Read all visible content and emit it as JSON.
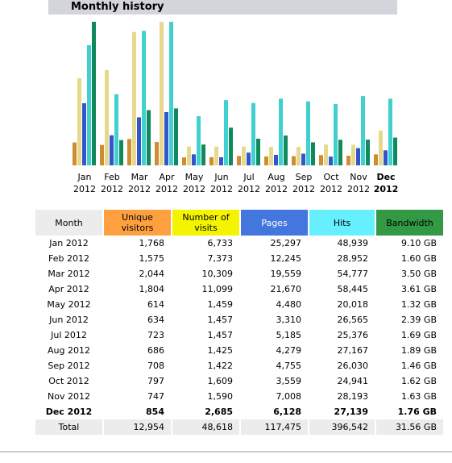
{
  "title": "Monthly history",
  "chart_data": {
    "type": "bar",
    "categories": [
      "Jan 2012",
      "Feb 2012",
      "Mar 2012",
      "Apr 2012",
      "May 2012",
      "Jun 2012",
      "Jul 2012",
      "Aug 2012",
      "Sep 2012",
      "Oct 2012",
      "Nov 2012",
      "Dec 2012"
    ],
    "highlight": "Dec 2012",
    "series": [
      {
        "name": "Unique visitors",
        "color": "#d08c30",
        "header_color": "#ffa040",
        "values": [
          1768,
          1575,
          2044,
          1804,
          614,
          634,
          723,
          686,
          708,
          797,
          747,
          854
        ],
        "value_labels": [
          "1,768",
          "1,575",
          "2,044",
          "1,804",
          "614",
          "634",
          "723",
          "686",
          "708",
          "797",
          "747",
          "854"
        ]
      },
      {
        "name": "Number of visits",
        "color": "#e6d98c",
        "header_color": "#f4f400",
        "values": [
          6733,
          7373,
          10309,
          11099,
          1459,
          1457,
          1457,
          1425,
          1422,
          1609,
          1590,
          2685
        ],
        "value_labels": [
          "6,733",
          "7,373",
          "10,309",
          "11,099",
          "1,459",
          "1,457",
          "1,457",
          "1,425",
          "1,422",
          "1,609",
          "1,590",
          "2,685"
        ]
      },
      {
        "name": "Pages",
        "color": "#3355cc",
        "header_color": "#4477dd",
        "values": [
          25297,
          12245,
          19559,
          21670,
          4480,
          3310,
          5185,
          4279,
          4755,
          3559,
          7008,
          6128
        ],
        "value_labels": [
          "25,297",
          "12,245",
          "19,559",
          "21,670",
          "4,480",
          "3,310",
          "5,185",
          "4,279",
          "4,755",
          "3,559",
          "7,008",
          "6,128"
        ]
      },
      {
        "name": "Hits",
        "color": "#40d0d0",
        "header_color": "#66f0ff",
        "values": [
          48939,
          28952,
          54777,
          58445,
          20018,
          26565,
          25376,
          27167,
          26030,
          24941,
          28193,
          27139
        ],
        "value_labels": [
          "48,939",
          "28,952",
          "54,777",
          "58,445",
          "20,018",
          "26,565",
          "25,376",
          "27,167",
          "26,030",
          "24,941",
          "28,193",
          "27,139"
        ]
      },
      {
        "name": "Bandwidth",
        "color": "#108a5c",
        "header_color": "#339944",
        "values": [
          9.1,
          1.6,
          3.5,
          3.61,
          1.32,
          2.39,
          1.69,
          1.89,
          1.46,
          1.62,
          1.63,
          1.76
        ],
        "value_labels": [
          "9.10 GB",
          "1.60 GB",
          "3.50 GB",
          "3.61 GB",
          "1.32 GB",
          "2.39 GB",
          "1.69 GB",
          "1.89 GB",
          "1.46 GB",
          "1.62 GB",
          "1.63 GB",
          "1.76 GB"
        ]
      }
    ]
  },
  "table": {
    "month_header": "Month",
    "total_label": "Total",
    "totals": [
      "12,954",
      "48,618",
      "117,475",
      "396,542",
      "31.56 GB"
    ]
  }
}
